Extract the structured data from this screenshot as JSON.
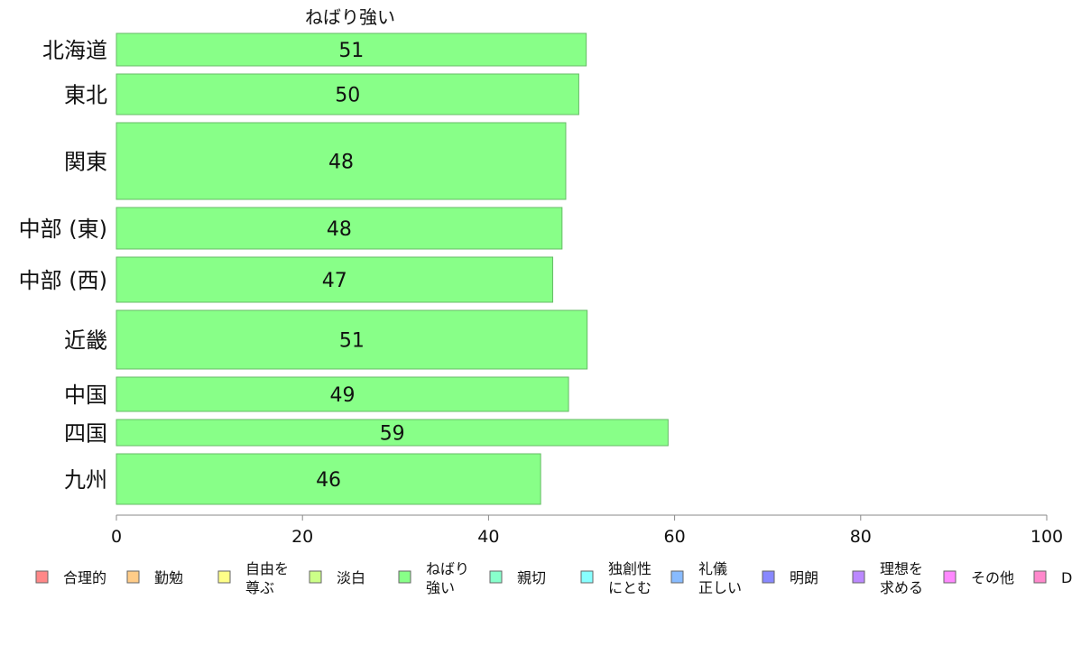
{
  "chart_data": {
    "type": "bar",
    "orientation": "horizontal",
    "title": "ねばり強い",
    "categories": [
      "北海道",
      "東北",
      "関東",
      "中部 (東)",
      "中部 (西)",
      "近畿",
      "中国",
      "四国",
      "九州"
    ],
    "values": [
      50.5,
      49.7,
      48.3,
      47.9,
      46.9,
      50.6,
      48.6,
      59.3,
      45.6
    ],
    "value_labels": [
      "51",
      "50",
      "48",
      "48",
      "47",
      "51",
      "49",
      "59",
      "46"
    ],
    "bar_color": "#88ff88",
    "bar_border_color": "#66bb66",
    "xlim": [
      0,
      100
    ],
    "x_ticks": [
      "0",
      "20",
      "40",
      "60",
      "80",
      "100"
    ],
    "xlabel": "",
    "ylabel": "",
    "grid": false,
    "legend_position": "bottom",
    "legend": [
      {
        "label": "合理的",
        "color": "#ff8888"
      },
      {
        "label": "勤勉",
        "color": "#ffcc88"
      },
      {
        "label": "自由を\n尊ぶ",
        "color": "#ffff88"
      },
      {
        "label": "淡白",
        "color": "#ccff88"
      },
      {
        "label": "ねばり\n強い",
        "color": "#88ff88"
      },
      {
        "label": "親切",
        "color": "#88ffcc"
      },
      {
        "label": "独創性\nにとむ",
        "color": "#88ffff"
      },
      {
        "label": "礼儀\n正しい",
        "color": "#88bbff"
      },
      {
        "label": "明朗",
        "color": "#8888ff"
      },
      {
        "label": "理想を\n求める",
        "color": "#bb88ff"
      },
      {
        "label": "その他",
        "color": "#ff88ff"
      },
      {
        "label": "D",
        "color": "#ff88cc"
      }
    ]
  }
}
